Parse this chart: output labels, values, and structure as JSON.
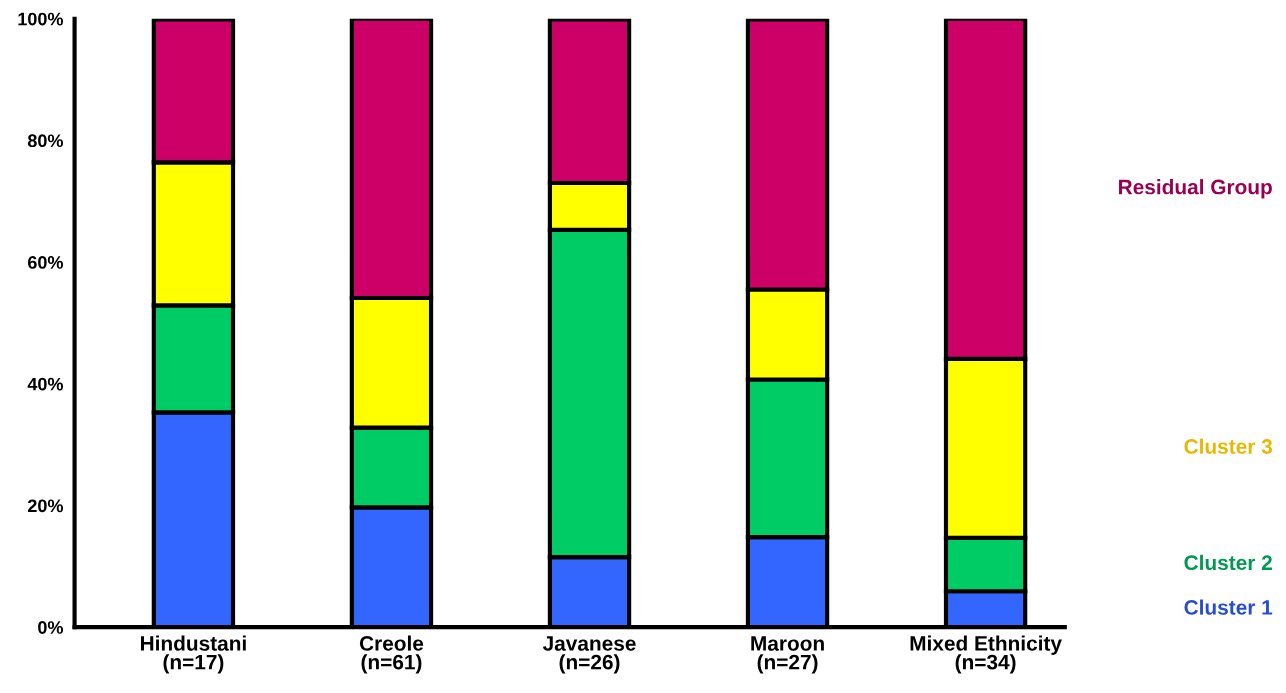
{
  "chart_data": {
    "type": "bar",
    "stacked": true,
    "categories": [
      "Hindustani\n(n=17)",
      "Creole\n(n=61)",
      "Javanese\n(n=26)",
      "Maroon\n(n=27)",
      "Mixed Ethnicity\n(n=34)"
    ],
    "series": [
      {
        "name": "Cluster 1",
        "color": "#3366ff",
        "values": [
          35.3,
          19.7,
          11.5,
          14.8,
          5.9
        ]
      },
      {
        "name": "Cluster 2",
        "color": "#00cc66",
        "values": [
          17.6,
          13.1,
          53.8,
          25.9,
          8.8
        ]
      },
      {
        "name": "Cluster 3",
        "color": "#ffff00",
        "values": [
          23.5,
          21.3,
          7.7,
          14.8,
          29.4
        ]
      },
      {
        "name": "Residual Group",
        "color": "#cc0066",
        "values": [
          23.5,
          45.9,
          26.9,
          44.4,
          55.9
        ]
      }
    ],
    "ylim": [
      0,
      100
    ],
    "yticks": [
      {
        "value": 0,
        "label": "0%"
      },
      {
        "value": 20,
        "label": "20%"
      },
      {
        "value": 40,
        "label": "40%"
      },
      {
        "value": 60,
        "label": "60%"
      },
      {
        "value": 80,
        "label": "80%"
      },
      {
        "value": 100,
        "label": "100%"
      }
    ],
    "grid": false,
    "legend": false
  }
}
